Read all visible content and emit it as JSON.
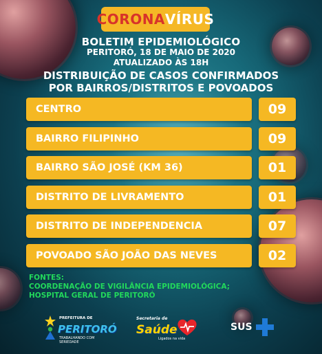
{
  "title": {
    "part1": "CORONA",
    "part2": "VÍRUS"
  },
  "header": {
    "line1": "BOLETIM EPIDEMIOLÓGICO",
    "line2": "PERITORÓ, 18 DE MAIO DE 2020",
    "line3": "ATUALIZADO ÀS 18h",
    "line4": "DISTRIBUIÇÃO DE CASOS CONFIRMADOS",
    "line5": "POR BAIRROS/DISTRITOS E POVOADOS"
  },
  "rows": [
    {
      "name": "CENTRO",
      "count": "09"
    },
    {
      "name": "BAIRRO FILIPINHO",
      "count": "09"
    },
    {
      "name": "BAIRRO SÃO JOSÉ (KM 36)",
      "count": "01"
    },
    {
      "name": "DISTRITO DE LIVRAMENTO",
      "count": "01"
    },
    {
      "name": "DISTRITO DE INDEPENDENCIA",
      "count": "07"
    },
    {
      "name": "POVOADO SÃO JOÃO DAS NEVES",
      "count": "02"
    }
  ],
  "sources": {
    "label": "FONTES:",
    "line1": "COORDENAÇÃO DE VIGILÂNCIA EPIDEMIOLÓGICA;",
    "line2": "HOSPITAL GERAL DE PERITORÓ"
  },
  "logos": {
    "peritoro": {
      "top": "PREFEITURA DE",
      "name": "PERITORÓ",
      "bottom": "TRABALHANDO COM SERIEDADE",
      "icon": "person-star-icon"
    },
    "saude": {
      "top": "Secretaria de",
      "name": "Saúde",
      "bottom": "Ligados na vida",
      "icon": "heart-icon"
    },
    "sus": {
      "name": "SUS",
      "icon": "cross-icon"
    }
  },
  "colors": {
    "accent": "#f5b823",
    "title_red": "#d8332a",
    "sources_green": "#22d85b",
    "background": "#176a7a"
  }
}
